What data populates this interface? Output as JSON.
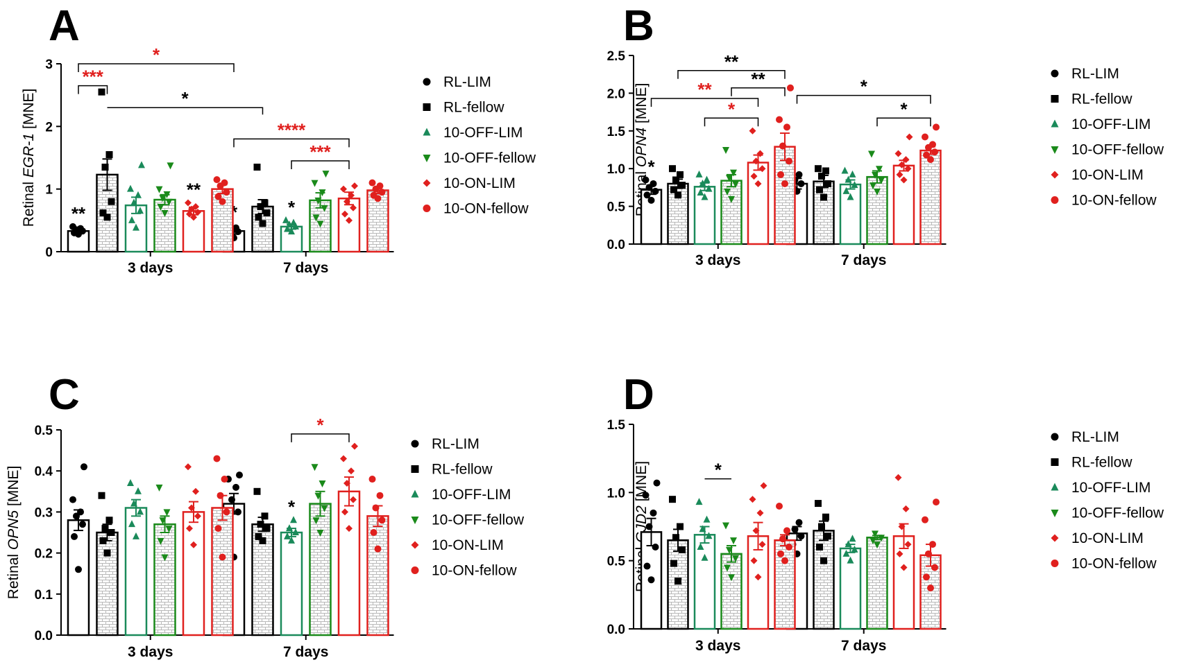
{
  "legend": [
    {
      "name": "RL-LIM",
      "color": "#000000",
      "marker": "circle",
      "pattern": "none"
    },
    {
      "name": "RL-fellow",
      "color": "#000000",
      "marker": "square",
      "pattern": "brick"
    },
    {
      "name": "10-OFF-LIM",
      "color": "#1a8a5a",
      "marker": "triangle-up",
      "pattern": "none"
    },
    {
      "name": "10-OFF-fellow",
      "color": "#1a8a1a",
      "marker": "triangle-down",
      "pattern": "brick"
    },
    {
      "name": "10-ON-LIM",
      "color": "#e0201e",
      "marker": "diamond",
      "pattern": "none"
    },
    {
      "name": "10-ON-fellow",
      "color": "#e0201e",
      "marker": "circle",
      "pattern": "brick"
    }
  ],
  "chart_data": [
    {
      "panel": "A",
      "type": "bar",
      "categories": [
        "3 days",
        "7 days"
      ],
      "ylabel_prefix": "Retinal ",
      "ylabel_gene": "EGR-1",
      "ylabel_suffix": " [MNE]",
      "ylim": [
        0,
        3
      ],
      "yticks": [
        0,
        1,
        2,
        3
      ],
      "tick_decimals": 0,
      "series": [
        {
          "name": "RL-LIM",
          "values": [
            0.33,
            0.33
          ],
          "sem": [
            0.04,
            0.05
          ],
          "points": [
            [
              0.28,
              0.3,
              0.33,
              0.35,
              0.37,
              0.4
            ],
            [
              0.22,
              0.28,
              0.32,
              0.35,
              0.38,
              0.42
            ]
          ],
          "sig": [
            "**",
            "*"
          ]
        },
        {
          "name": "RL-fellow",
          "values": [
            1.23,
            0.72
          ],
          "sem": [
            0.25,
            0.11
          ],
          "points": [
            [
              0.55,
              0.62,
              0.8,
              1.35,
              1.55,
              2.55
            ],
            [
              0.45,
              0.55,
              0.62,
              0.72,
              0.78,
              1.35
            ]
          ],
          "sig": [
            "",
            ""
          ]
        },
        {
          "name": "10-OFF-LIM",
          "values": [
            0.74,
            0.4
          ],
          "sem": [
            0.13,
            0.04
          ],
          "points": [
            [
              0.38,
              0.5,
              0.65,
              0.78,
              0.9,
              1.0,
              1.38
            ],
            [
              0.32,
              0.36,
              0.4,
              0.43,
              0.46,
              0.5
            ]
          ],
          "sig": [
            "",
            "*"
          ]
        },
        {
          "name": "10-OFF-fellow",
          "values": [
            0.83,
            0.82
          ],
          "sem": [
            0.08,
            0.12
          ],
          "points": [
            [
              0.62,
              0.72,
              0.8,
              0.86,
              0.92,
              1.0,
              1.38
            ],
            [
              0.45,
              0.55,
              0.7,
              0.82,
              0.95,
              1.1,
              1.25
            ]
          ],
          "sig": [
            "",
            ""
          ]
        },
        {
          "name": "10-ON-LIM",
          "values": [
            0.65,
            0.85
          ],
          "sem": [
            0.06,
            0.1
          ],
          "points": [
            [
              0.55,
              0.6,
              0.63,
              0.68,
              0.72,
              0.78
            ],
            [
              0.5,
              0.6,
              0.7,
              0.8,
              0.9,
              1.0,
              1.05
            ]
          ],
          "sig": [
            "**",
            ""
          ]
        },
        {
          "name": "10-ON-fellow",
          "values": [
            1.0,
            0.98
          ],
          "sem": [
            0.07,
            0.05
          ],
          "points": [
            [
              0.8,
              0.88,
              0.95,
              1.05,
              1.1,
              1.15
            ],
            [
              0.85,
              0.9,
              0.95,
              1.0,
              1.05,
              1.1
            ]
          ],
          "sig": [
            "",
            ""
          ]
        }
      ],
      "brackets": [
        {
          "from": [
            0,
            0
          ],
          "to": [
            0,
            1
          ],
          "y": 2.65,
          "label": "***",
          "color": "#e0201e",
          "tip": "down"
        },
        {
          "from": [
            0,
            0
          ],
          "to": [
            1,
            0
          ],
          "y": 3.0,
          "label": "*",
          "color": "#e0201e",
          "tip": "down"
        },
        {
          "from": [
            0,
            1
          ],
          "to": [
            1,
            1
          ],
          "y": 2.3,
          "label": "*",
          "color": "#000000",
          "tip": "up"
        },
        {
          "from": [
            1,
            0
          ],
          "to": [
            1,
            4
          ],
          "y": 1.8,
          "label": "****",
          "color": "#e0201e",
          "tip": "down"
        },
        {
          "from": [
            1,
            2
          ],
          "to": [
            1,
            4
          ],
          "y": 1.45,
          "label": "***",
          "color": "#e0201e",
          "tip": "down"
        }
      ]
    },
    {
      "panel": "B",
      "type": "bar",
      "categories": [
        "3 days",
        "7 days"
      ],
      "ylabel_prefix": "Retinal ",
      "ylabel_gene": "OPN4",
      "ylabel_suffix": " [MNE]",
      "ylim": [
        0,
        2.5
      ],
      "yticks": [
        0.0,
        0.5,
        1.0,
        1.5,
        2.0,
        2.5
      ],
      "tick_decimals": 1,
      "series": [
        {
          "name": "RL-LIM",
          "values": [
            0.72,
            0.8
          ],
          "sem": [
            0.06,
            0.07
          ],
          "points": [
            [
              0.58,
              0.65,
              0.7,
              0.75,
              0.8,
              0.85
            ],
            [
              0.7,
              0.75,
              0.8,
              0.85,
              0.92
            ]
          ],
          "sig": [
            "*",
            ""
          ]
        },
        {
          "name": "RL-fellow",
          "values": [
            0.8,
            0.83
          ],
          "sem": [
            0.06,
            0.08
          ],
          "points": [
            [
              0.65,
              0.72,
              0.78,
              0.85,
              0.92,
              1.0
            ],
            [
              0.62,
              0.72,
              0.8,
              0.9,
              0.97,
              1.0
            ]
          ],
          "sig": [
            "",
            ""
          ]
        },
        {
          "name": "10-OFF-LIM",
          "values": [
            0.76,
            0.79
          ],
          "sem": [
            0.05,
            0.06
          ],
          "points": [
            [
              0.62,
              0.68,
              0.73,
              0.8,
              0.85,
              0.92
            ],
            [
              0.62,
              0.7,
              0.78,
              0.85,
              0.92,
              0.97
            ]
          ],
          "sig": [
            "",
            ""
          ]
        },
        {
          "name": "10-OFF-fellow",
          "values": [
            0.84,
            0.89
          ],
          "sem": [
            0.08,
            0.08
          ],
          "points": [
            [
              0.6,
              0.7,
              0.8,
              0.88,
              0.95,
              1.25
            ],
            [
              0.7,
              0.78,
              0.85,
              0.92,
              1.0,
              1.2
            ]
          ],
          "sig": [
            "",
            ""
          ]
        },
        {
          "name": "10-ON-LIM",
          "values": [
            1.08,
            1.04
          ],
          "sem": [
            0.1,
            0.07
          ],
          "points": [
            [
              0.8,
              0.9,
              1.0,
              1.1,
              1.2,
              1.5
            ],
            [
              0.85,
              0.92,
              1.0,
              1.05,
              1.12,
              1.2,
              1.42
            ]
          ],
          "sig": [
            "",
            ""
          ]
        },
        {
          "name": "10-ON-fellow",
          "values": [
            1.29,
            1.24
          ],
          "sem": [
            0.18,
            0.05
          ],
          "points": [
            [
              0.8,
              0.92,
              1.1,
              1.3,
              1.55,
              1.65,
              2.07
            ],
            [
              1.12,
              1.18,
              1.22,
              1.28,
              1.32,
              1.42,
              1.55
            ]
          ],
          "sig": [
            "",
            ""
          ]
        }
      ],
      "brackets": [
        {
          "from": [
            0,
            0
          ],
          "to": [
            0,
            4
          ],
          "y": 1.93,
          "label": "**",
          "color": "#e0201e",
          "tip": "down"
        },
        {
          "from": [
            0,
            2
          ],
          "to": [
            0,
            4
          ],
          "y": 1.67,
          "label": "*",
          "color": "#e0201e",
          "tip": "down"
        },
        {
          "from": [
            0,
            1
          ],
          "to": [
            0,
            5
          ],
          "y": 2.3,
          "label": "**",
          "color": "#000000",
          "tip": "down"
        },
        {
          "from": [
            0,
            3
          ],
          "to": [
            0,
            5
          ],
          "y": 2.07,
          "label": "**",
          "color": "#000000",
          "tip": "down"
        },
        {
          "from": [
            1,
            0
          ],
          "to": [
            1,
            5
          ],
          "y": 1.97,
          "label": "*",
          "color": "#000000",
          "tip": "down"
        },
        {
          "from": [
            1,
            3
          ],
          "to": [
            1,
            5
          ],
          "y": 1.67,
          "label": "*",
          "color": "#000000",
          "tip": "down"
        }
      ]
    },
    {
      "panel": "C",
      "type": "bar",
      "categories": [
        "3 days",
        "7 days"
      ],
      "ylabel_prefix": "Retinal ",
      "ylabel_gene": "OPN5",
      "ylabel_suffix": " [MNE]",
      "ylim": [
        0,
        0.5
      ],
      "yticks": [
        0.0,
        0.1,
        0.2,
        0.3,
        0.4,
        0.5
      ],
      "tick_decimals": 1,
      "series": [
        {
          "name": "RL-LIM",
          "values": [
            0.28,
            0.32
          ],
          "sem": [
            0.025,
            0.025
          ],
          "points": [
            [
              0.16,
              0.24,
              0.27,
              0.29,
              0.3,
              0.33,
              0.41
            ],
            [
              0.19,
              0.28,
              0.3,
              0.33,
              0.36,
              0.38,
              0.39
            ]
          ],
          "sig": [
            "",
            ""
          ]
        },
        {
          "name": "RL-fellow",
          "values": [
            0.25,
            0.27
          ],
          "sem": [
            0.02,
            0.017
          ],
          "points": [
            [
              0.2,
              0.23,
              0.25,
              0.26,
              0.28,
              0.34
            ],
            [
              0.23,
              0.24,
              0.26,
              0.27,
              0.29,
              0.35
            ]
          ],
          "sig": [
            "",
            ""
          ]
        },
        {
          "name": "10-OFF-LIM",
          "values": [
            0.31,
            0.25
          ],
          "sem": [
            0.02,
            0.01
          ],
          "points": [
            [
              0.24,
              0.27,
              0.3,
              0.32,
              0.35,
              0.37
            ],
            [
              0.23,
              0.24,
              0.25,
              0.26,
              0.28
            ]
          ],
          "sig": [
            "",
            "*"
          ]
        },
        {
          "name": "10-OFF-fellow",
          "values": [
            0.27,
            0.32
          ],
          "sem": [
            0.02,
            0.03
          ],
          "points": [
            [
              0.19,
              0.23,
              0.26,
              0.28,
              0.3,
              0.36
            ],
            [
              0.25,
              0.28,
              0.31,
              0.34,
              0.37,
              0.41
            ]
          ],
          "sig": [
            "",
            ""
          ]
        },
        {
          "name": "10-ON-LIM",
          "values": [
            0.3,
            0.35
          ],
          "sem": [
            0.025,
            0.035
          ],
          "points": [
            [
              0.22,
              0.26,
              0.29,
              0.31,
              0.35,
              0.41
            ],
            [
              0.26,
              0.3,
              0.33,
              0.37,
              0.4,
              0.43,
              0.46
            ]
          ],
          "sig": [
            "",
            ""
          ]
        },
        {
          "name": "10-ON-fellow",
          "values": [
            0.31,
            0.29
          ],
          "sem": [
            0.03,
            0.025
          ],
          "points": [
            [
              0.19,
              0.26,
              0.3,
              0.34,
              0.38,
              0.43
            ],
            [
              0.21,
              0.25,
              0.28,
              0.31,
              0.34,
              0.38
            ]
          ],
          "sig": [
            "",
            ""
          ]
        }
      ],
      "brackets": [
        {
          "from": [
            1,
            2
          ],
          "to": [
            1,
            4
          ],
          "y": 0.49,
          "label": "*",
          "color": "#e0201e",
          "tip": "down"
        }
      ]
    },
    {
      "panel": "D",
      "type": "bar",
      "categories": [
        "3 days",
        "7 days"
      ],
      "ylabel_prefix": "Retinal ",
      "ylabel_gene": "GJD2",
      "ylabel_suffix": " [MNE]",
      "ylim": [
        0,
        1.5
      ],
      "yticks": [
        0.0,
        0.5,
        1.0,
        1.5
      ],
      "tick_decimals": 1,
      "series": [
        {
          "name": "RL-LIM",
          "values": [
            0.71,
            0.7
          ],
          "sem": [
            0.1,
            0.05
          ],
          "points": [
            [
              0.36,
              0.46,
              0.6,
              0.75,
              0.85,
              0.98,
              1.07
            ],
            [
              0.55,
              0.62,
              0.68,
              0.73,
              0.78
            ]
          ],
          "sig": [
            "",
            ""
          ]
        },
        {
          "name": "RL-fellow",
          "values": [
            0.65,
            0.72
          ],
          "sem": [
            0.08,
            0.07
          ],
          "points": [
            [
              0.35,
              0.48,
              0.58,
              0.67,
              0.75,
              0.95
            ],
            [
              0.5,
              0.6,
              0.68,
              0.75,
              0.82,
              0.92
            ]
          ],
          "sig": [
            "",
            ""
          ]
        },
        {
          "name": "10-OFF-LIM",
          "values": [
            0.69,
            0.59
          ],
          "sem": [
            0.06,
            0.03
          ],
          "points": [
            [
              0.52,
              0.6,
              0.68,
              0.73,
              0.8,
              0.93
            ],
            [
              0.5,
              0.55,
              0.58,
              0.62,
              0.66
            ]
          ],
          "sig": [
            "",
            ""
          ]
        },
        {
          "name": "10-OFF-fellow",
          "values": [
            0.55,
            0.67
          ],
          "sem": [
            0.06,
            0.015
          ],
          "points": [
            [
              0.38,
              0.45,
              0.52,
              0.58,
              0.65,
              0.76
            ],
            [
              0.62,
              0.65,
              0.67,
              0.7
            ]
          ],
          "sig": [
            "",
            ""
          ]
        },
        {
          "name": "10-ON-LIM",
          "values": [
            0.68,
            0.68
          ],
          "sem": [
            0.1,
            0.09
          ],
          "points": [
            [
              0.38,
              0.5,
              0.62,
              0.72,
              0.85,
              0.95,
              1.05
            ],
            [
              0.45,
              0.55,
              0.62,
              0.75,
              0.88,
              1.11
            ]
          ],
          "sig": [
            "",
            ""
          ]
        },
        {
          "name": "10-ON-fellow",
          "values": [
            0.65,
            0.54
          ],
          "sem": [
            0.04,
            0.08
          ],
          "points": [
            [
              0.5,
              0.55,
              0.6,
              0.66,
              0.72,
              0.9
            ],
            [
              0.3,
              0.38,
              0.45,
              0.55,
              0.62,
              0.8,
              0.93
            ]
          ],
          "sig": [
            "",
            ""
          ]
        }
      ],
      "brackets": [
        {
          "from": [
            0,
            2
          ],
          "to": [
            0,
            3
          ],
          "y": 1.1,
          "label": "*",
          "color": "#000000",
          "tip": "none"
        }
      ]
    }
  ]
}
